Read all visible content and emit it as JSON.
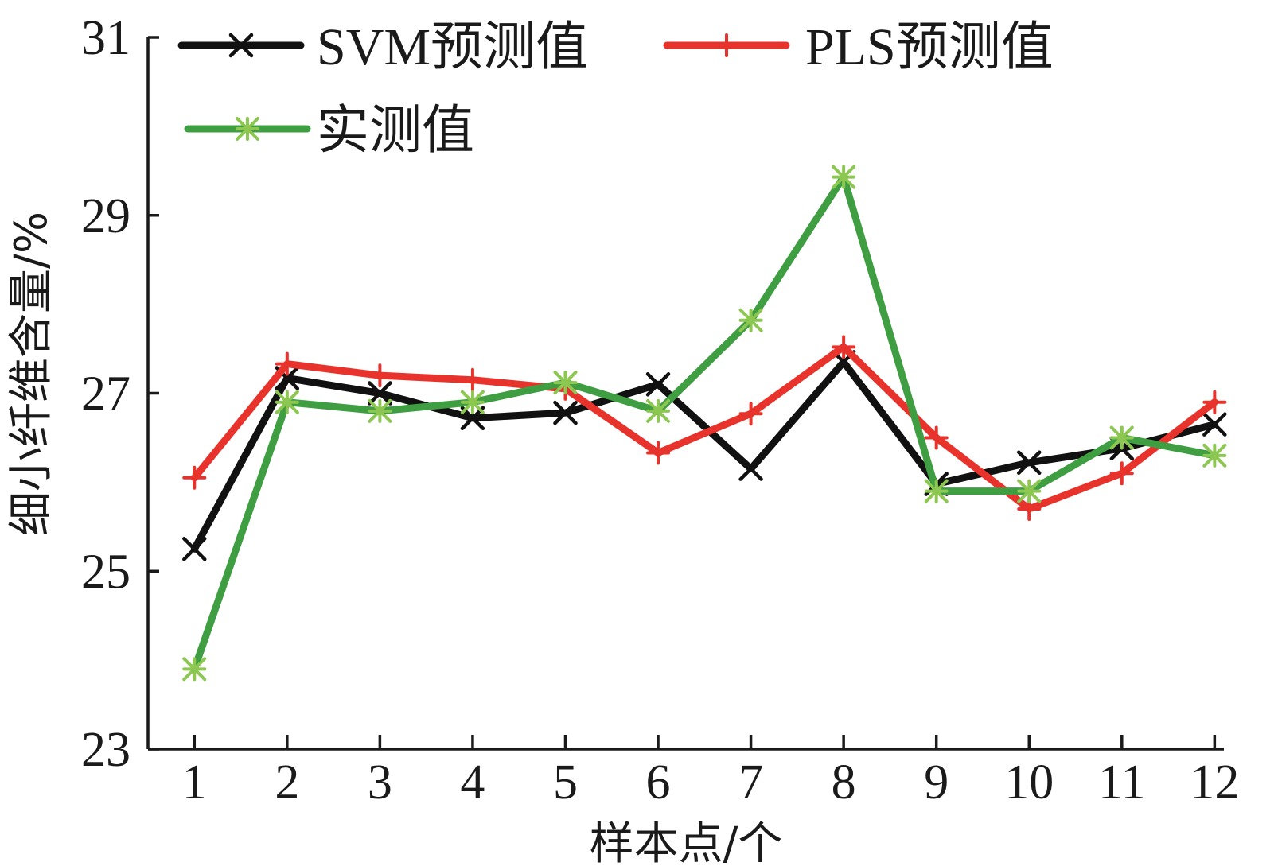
{
  "chart_data": {
    "type": "line",
    "xlabel": "样本点/个",
    "ylabel": "细小纤维含量/%",
    "x": [
      1,
      2,
      3,
      4,
      5,
      6,
      7,
      8,
      9,
      10,
      11,
      12
    ],
    "xticks": [
      "1",
      "2",
      "3",
      "4",
      "5",
      "6",
      "7",
      "8",
      "9",
      "10",
      "11",
      "12"
    ],
    "xlim": [
      0.5,
      12.1
    ],
    "ylim": [
      23,
      31
    ],
    "yticks": [
      "23",
      "25",
      "27",
      "29",
      "31"
    ],
    "grid": false,
    "legend_position": "top-left",
    "series": [
      {
        "name": "SVM预测值",
        "color": "#111111",
        "marker": "x",
        "values": [
          25.25,
          27.17,
          27.0,
          26.72,
          26.78,
          27.1,
          26.15,
          27.35,
          25.98,
          26.22,
          26.38,
          26.65
        ]
      },
      {
        "name": "PLS预测值",
        "color": "#e8322c",
        "marker": "plus",
        "values": [
          26.05,
          27.33,
          27.2,
          27.15,
          27.05,
          26.33,
          26.77,
          27.52,
          26.5,
          25.7,
          26.1,
          26.9
        ]
      },
      {
        "name": "实测值",
        "color": "#3f9e42",
        "marker": "asterisk",
        "marker_color": "#8cc751",
        "values": [
          23.9,
          26.9,
          26.8,
          26.9,
          27.12,
          26.8,
          27.82,
          29.43,
          25.9,
          25.9,
          26.5,
          26.3
        ]
      }
    ]
  }
}
